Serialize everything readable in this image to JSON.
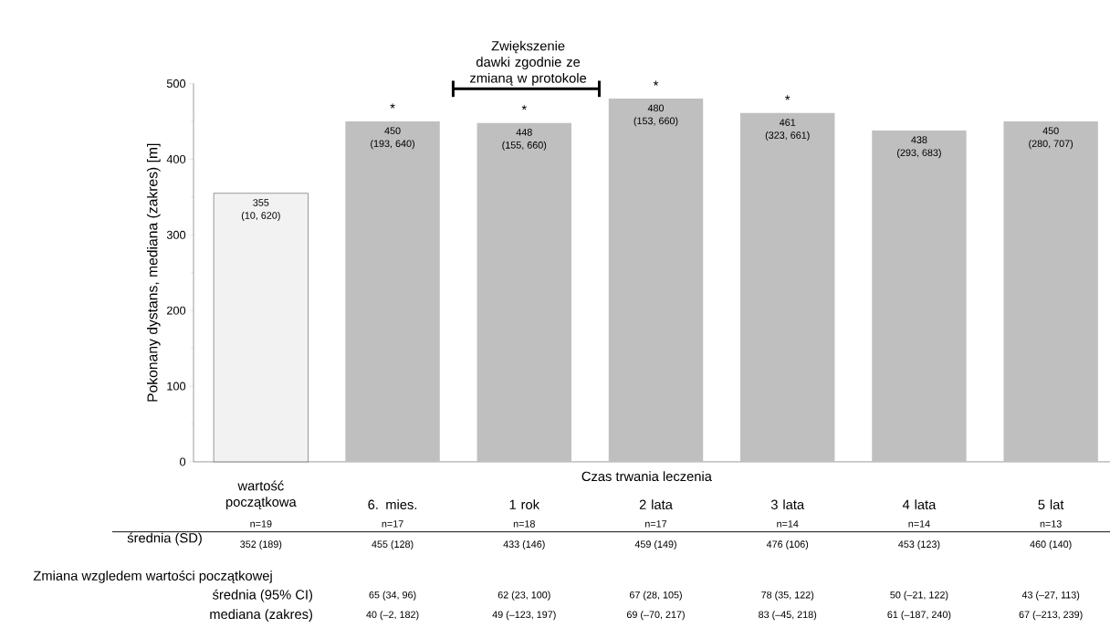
{
  "chart_data": {
    "type": "bar",
    "categories": [
      "wartość początkowa",
      "6. mies.",
      "1 rok",
      "2 lata",
      "3 lata",
      "4 lata",
      "5 lat"
    ],
    "values": [
      355,
      450,
      448,
      480,
      461,
      438,
      450
    ],
    "colors": [
      "#f2f2f2",
      "#bfbfbf",
      "#bfbfbf",
      "#bfbfbf",
      "#bfbfbf",
      "#bfbfbf",
      "#bfbfbf"
    ],
    "data_labels": true,
    "xlabel": "Czas trwania leczenia",
    "ylabel": "Pokonany dystans, mediana (zakres) [m]",
    "ylim": [
      0,
      500
    ],
    "yticks": [
      0,
      100,
      200,
      300,
      400,
      500
    ],
    "grid": false,
    "annotations": [
      "Zwiększenie dawki zgodnie ze zmianą w protokole",
      {
        "text": "(10, 620)",
        "x": "wartość początkowa",
        "y": 355
      },
      {
        "text": "(193, 640)",
        "x": "6. mies.",
        "y": 450
      },
      {
        "text": "(155, 660)",
        "x": "1 rok",
        "y": 448
      },
      {
        "text": "(153, 660)",
        "x": "2 lata",
        "y": 480
      },
      {
        "text": "(323, 661)",
        "x": "3 lata",
        "y": 461
      },
      {
        "text": "(293, 683)",
        "x": "4 lata",
        "y": 438
      },
      {
        "text": "(280, 707)",
        "x": "5 lat",
        "y": 450
      },
      {
        "text": "*",
        "x": "6. mies.",
        "y": 450
      },
      {
        "text": "*",
        "x": "1 rok",
        "y": 448
      },
      {
        "text": "*",
        "x": "2 lata",
        "y": 480
      },
      {
        "text": "*",
        "x": "3 lata",
        "y": 461
      },
      "n=19",
      "n=17",
      "n=18",
      "n=17",
      "n=14",
      "n=14",
      "n=13",
      "średnia (SD)",
      "352 (189)",
      "455 (128)",
      "433 (146)",
      "459 (149)",
      "476 (106)",
      "453 (123)",
      "460 (140)",
      "Zmiana wzgledem wartości początkowej",
      "średnia (95% CI)",
      "65 (34, 96)",
      "62 (23, 100)",
      "67 (28, 105)",
      "78 (35, 122)",
      "50 (–21, 122)",
      "43 (–27, 113)",
      "mediana (zakres)",
      "40 (–2, 182)",
      "49 (–123, 197)",
      "69 (–70, 217)",
      "83 (–45, 218)",
      "61 (–187, 240)",
      "67 (–213, 239)"
    ]
  }
}
